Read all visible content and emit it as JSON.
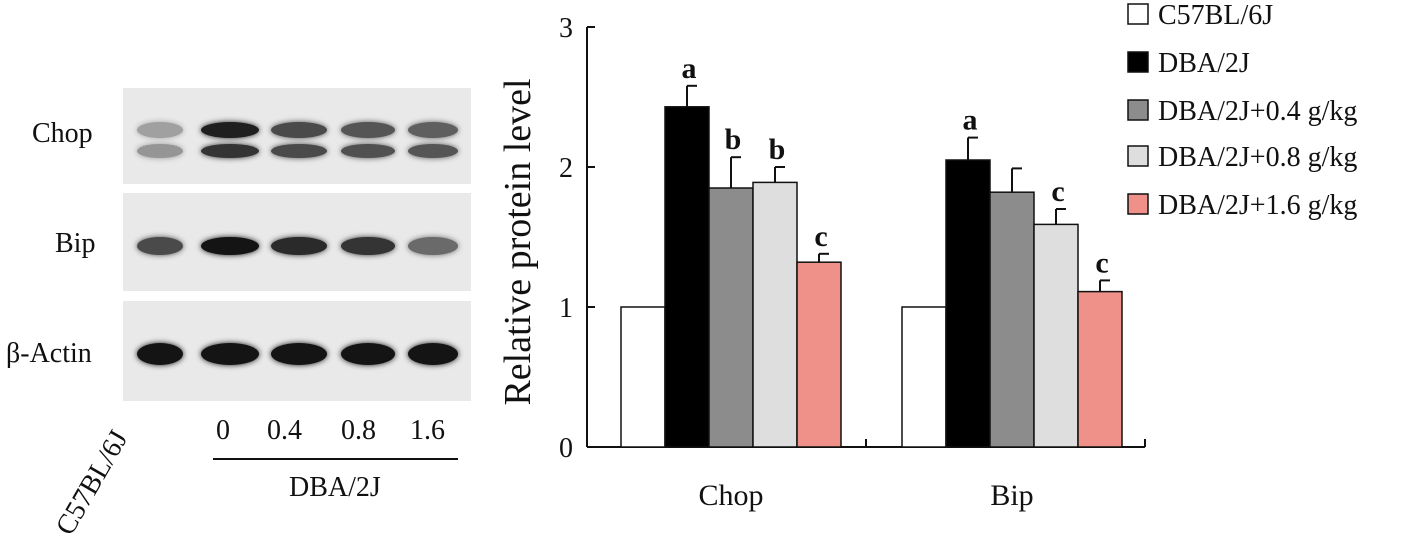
{
  "blot": {
    "rows": [
      {
        "label": "Chop",
        "bands": [
          [
            0.35,
            0.4
          ],
          [
            0.95,
            0.85
          ],
          [
            0.75,
            0.75
          ],
          [
            0.7,
            0.72
          ],
          [
            0.65,
            0.7
          ]
        ]
      },
      {
        "label": "Bip",
        "bands": [
          [
            0.75
          ],
          [
            1.0
          ],
          [
            0.9
          ],
          [
            0.85
          ],
          [
            0.6
          ]
        ]
      },
      {
        "label": "β-Actin",
        "bands": [
          [
            1.0
          ],
          [
            1.0
          ],
          [
            1.0
          ],
          [
            1.0
          ],
          [
            1.0
          ]
        ]
      }
    ],
    "lanes": [
      "C57BL/6J",
      "0",
      "0.4",
      "0.8",
      "1.6"
    ],
    "group_label": "DBA/2J"
  },
  "colors": {
    "C57BL/6J": "#ffffff",
    "DBA/2J": "#000000",
    "DBA/2J+0.4 g/kg": "#8c8c8c",
    "DBA/2J+0.8 g/kg": "#dedede",
    "DBA/2J+1.6 g/kg": "#ef9189"
  },
  "chart_data": {
    "type": "bar",
    "categories": [
      "Chop",
      "Bip"
    ],
    "ylabel": "Relative protein level",
    "ylim": [
      0,
      3
    ],
    "yticks": [
      "0",
      "1",
      "2",
      "3"
    ],
    "grid": false,
    "legend_position": "right",
    "series": [
      {
        "name": "C57BL/6J",
        "values": [
          1.0,
          1.0
        ],
        "errors": [
          0,
          0
        ],
        "labels": [
          "",
          ""
        ]
      },
      {
        "name": "DBA/2J",
        "values": [
          2.43,
          2.05
        ],
        "errors": [
          0.15,
          0.16
        ],
        "labels": [
          "a",
          "a"
        ]
      },
      {
        "name": "DBA/2J+0.4 g/kg",
        "values": [
          1.85,
          1.82
        ],
        "errors": [
          0.22,
          0.17
        ],
        "labels": [
          "b",
          ""
        ]
      },
      {
        "name": "DBA/2J+0.8 g/kg",
        "values": [
          1.89,
          1.59
        ],
        "errors": [
          0.11,
          0.11
        ],
        "labels": [
          "b",
          "c"
        ]
      },
      {
        "name": "DBA/2J+1.6 g/kg",
        "values": [
          1.32,
          1.11
        ],
        "errors": [
          0.06,
          0.08
        ],
        "labels": [
          "c",
          "c"
        ]
      }
    ]
  }
}
